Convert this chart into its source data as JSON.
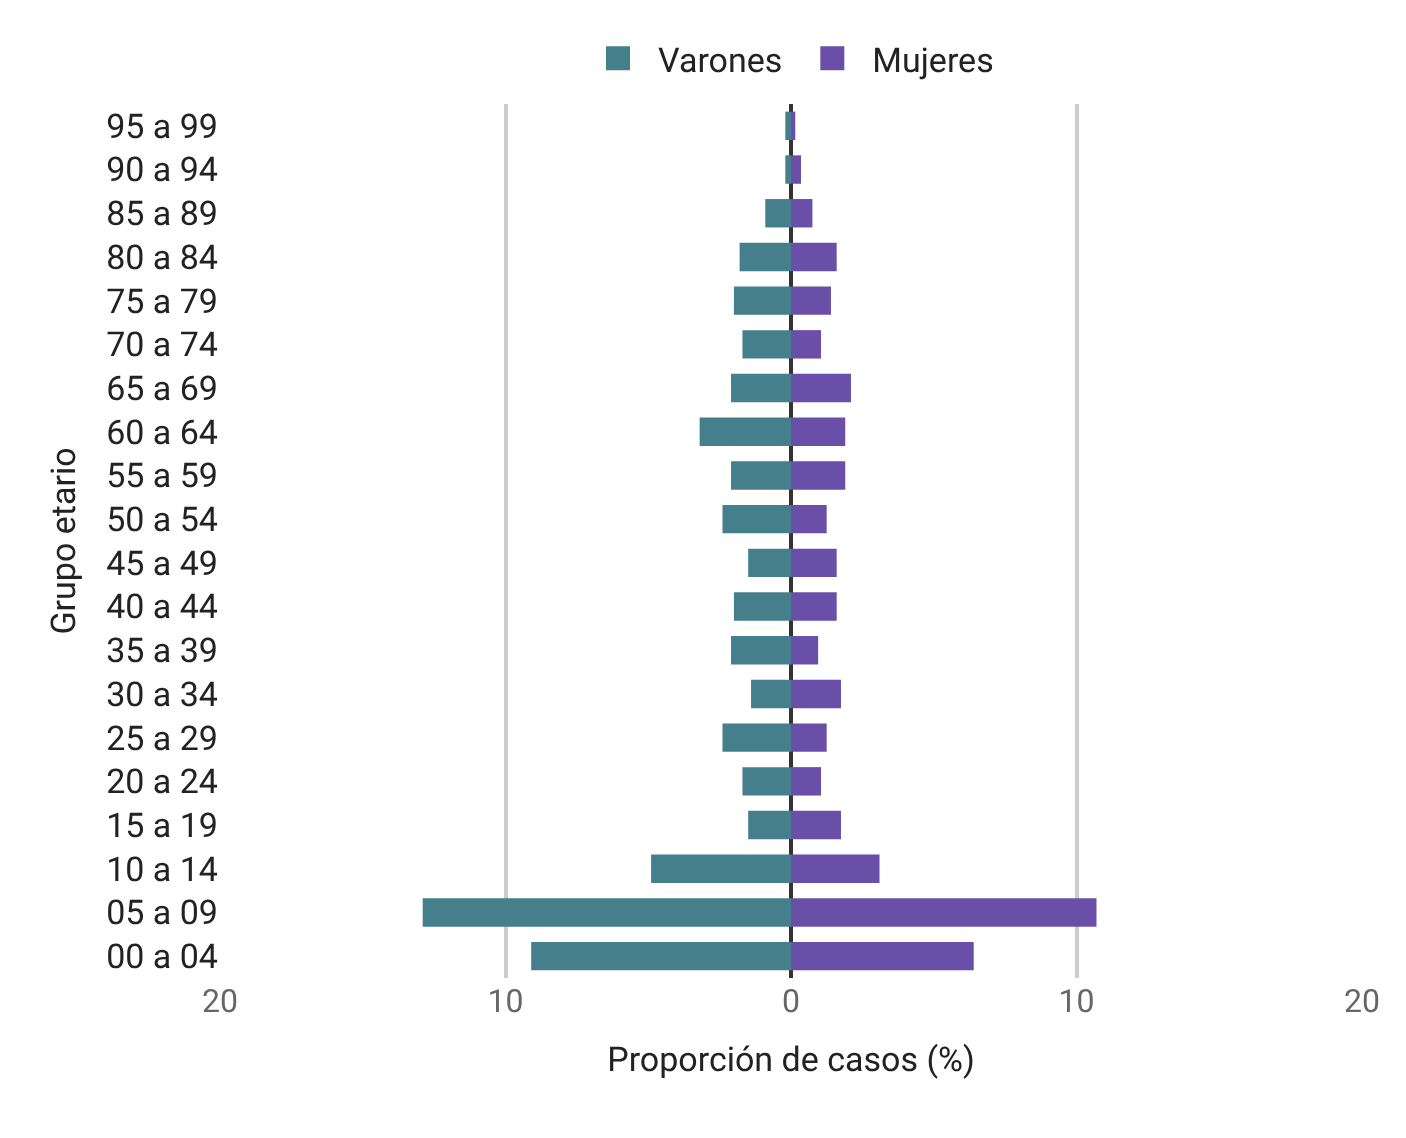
{
  "chart_data": {
    "type": "bar",
    "orientation": "horizontal",
    "xlabel": "Proporción de casos (%)",
    "ylabel": "Grupo etario",
    "categories": [
      "95 a 99",
      "90 a 94",
      "85 a 89",
      "80 a 84",
      "75 a 79",
      "70 a 74",
      "65 a 69",
      "60 a 64",
      "55 a 59",
      "50 a 54",
      "45 a 49",
      "40 a 44",
      "35 a 39",
      "30 a 34",
      "25 a 29",
      "20 a 24",
      "15 a 19",
      "10 a 14",
      "05 a 09",
      "00 a 04"
    ],
    "series": [
      {
        "name": "Varones",
        "color": "#457f8c",
        "values": [
          -0.2,
          -0.2,
          -0.9,
          -1.8,
          -2.0,
          -1.7,
          -2.1,
          -3.2,
          -2.1,
          -2.4,
          -1.5,
          -2.0,
          -2.1,
          -1.4,
          -2.4,
          -1.7,
          -1.5,
          -4.9,
          -12.9,
          -9.1
        ]
      },
      {
        "name": "Mujeres",
        "color": "#6a4fa8",
        "values": [
          0.15,
          0.35,
          0.75,
          1.6,
          1.4,
          1.05,
          2.1,
          1.9,
          1.9,
          1.25,
          1.6,
          1.6,
          0.95,
          1.75,
          1.25,
          1.05,
          1.75,
          3.1,
          10.7,
          6.4
        ]
      }
    ],
    "xlim": [
      -20,
      20
    ],
    "xticks": [
      {
        "value": -20,
        "label": "20"
      },
      {
        "value": -10,
        "label": "10"
      },
      0,
      10,
      20
    ],
    "stacked": true,
    "grid": "x",
    "legend": "top"
  }
}
